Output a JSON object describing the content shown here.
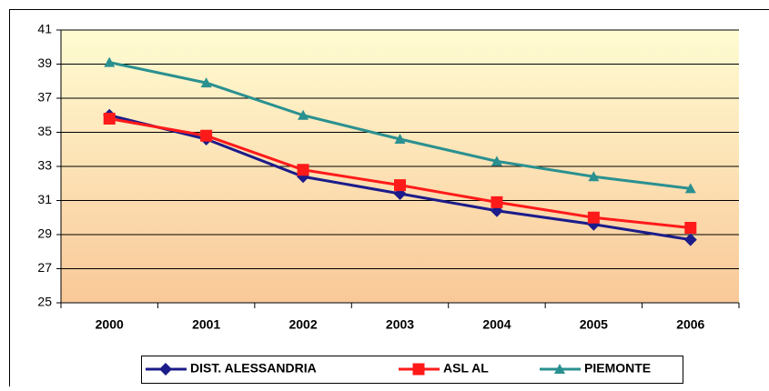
{
  "chart_data": {
    "type": "line",
    "categories": [
      "2000",
      "2001",
      "2002",
      "2003",
      "2004",
      "2005",
      "2006"
    ],
    "series": [
      {
        "name": "DIST. ALESSANDRIA",
        "color": "#1c1c8a",
        "marker": "diamond",
        "values": [
          36.0,
          34.6,
          32.4,
          31.4,
          30.4,
          29.6,
          28.7
        ]
      },
      {
        "name": "ASL AL",
        "color": "#ff1a1a",
        "marker": "square",
        "values": [
          35.8,
          34.8,
          32.8,
          31.9,
          30.9,
          30.0,
          29.4
        ]
      },
      {
        "name": "PIEMONTE",
        "color": "#2a9090",
        "marker": "triangle",
        "values": [
          39.1,
          37.9,
          36.0,
          34.6,
          33.3,
          32.4,
          31.7
        ]
      }
    ],
    "ylim": [
      25,
      41
    ],
    "yticks": [
      25,
      27,
      29,
      31,
      33,
      35,
      37,
      39,
      41
    ],
    "grid": true,
    "legend": "bottom"
  }
}
